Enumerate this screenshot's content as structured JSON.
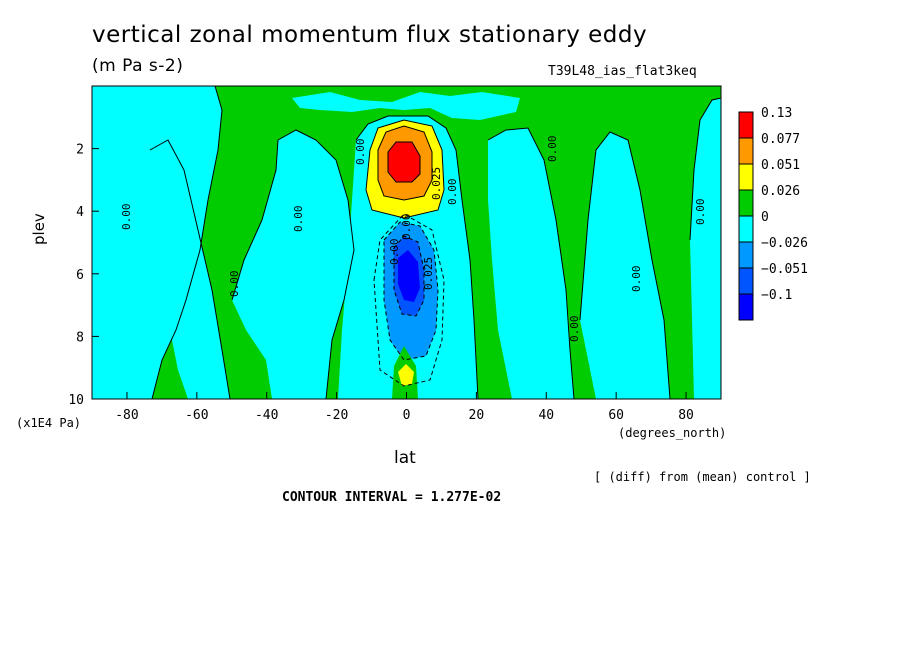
{
  "title": "vertical zonal momentum flux stationary eddy",
  "units": "(m Pa s-2)",
  "run_name": "T39L48_ias_flat3keq",
  "subtitle_note": "[ (diff) from (mean) control ]",
  "contour_interval": "CONTOUR INTERVAL = 1.277E-02",
  "chart_data": {
    "type": "heatmap",
    "title": "vertical zonal momentum flux stationary eddy",
    "xlabel": "lat",
    "xunits": "(degrees_north)",
    "ylabel": "plev",
    "yscale_label": "(x1E4 Pa)",
    "xlim": [
      -90,
      90
    ],
    "ylim": [
      10,
      0
    ],
    "xticks": [
      -80,
      -60,
      -40,
      -20,
      0,
      20,
      40,
      60,
      80
    ],
    "yticks": [
      2,
      4,
      6,
      8,
      10
    ],
    "contour_labels": [
      "0.00",
      "0.00",
      "0.00",
      "0.00",
      "0.00",
      "0.00",
      "0.00",
      "0.00",
      "0.00",
      "0.00",
      "0.00",
      "0.025",
      "0.025"
    ],
    "colorbar": {
      "levels": [
        "0.13",
        "0.077",
        "0.051",
        "0.026",
        "0",
        "−0.026",
        "−0.051",
        "−0.1"
      ],
      "colors": [
        "#ff0000",
        "#ff9900",
        "#ffff00",
        "#00cc00",
        "#00ffff",
        "#0099ff",
        "#0055ff",
        "#0000ff"
      ]
    },
    "features": [
      {
        "name": "positive maximum",
        "lat": 0,
        "plev": 2.6,
        "value": 0.13
      },
      {
        "name": "negative minimum",
        "lat": 0,
        "plev": 6.3,
        "value": -0.1
      },
      {
        "name": "positive near surface",
        "lat": 0,
        "plev": 9.2,
        "value": 0.051
      }
    ]
  }
}
